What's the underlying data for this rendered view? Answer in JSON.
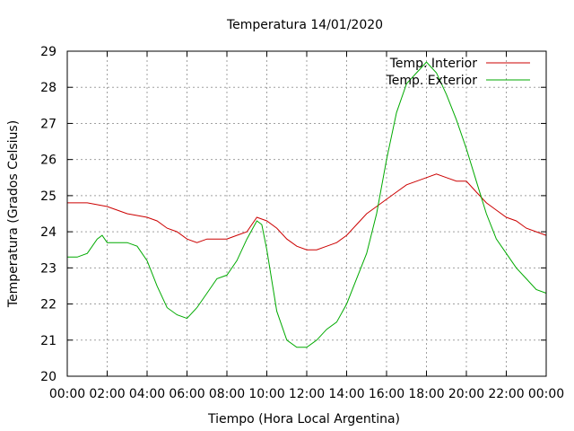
{
  "chart_data": {
    "type": "line",
    "title": "Temperatura 14/01/2020",
    "xlabel": "Tiempo (Hora Local Argentina)",
    "ylabel": "Temperatura (Grados Celsius)",
    "x_unit": "hours",
    "xlim": [
      0,
      24
    ],
    "ylim": [
      20,
      29
    ],
    "grid": true,
    "legend_position": "top-right",
    "x_ticks": [
      "00:00",
      "02:00",
      "04:00",
      "06:00",
      "08:00",
      "10:00",
      "12:00",
      "14:00",
      "16:00",
      "18:00",
      "20:00",
      "22:00",
      "00:00"
    ],
    "y_ticks": [
      "20",
      "21",
      "22",
      "23",
      "24",
      "25",
      "26",
      "27",
      "28",
      "29"
    ],
    "series": [
      {
        "name": "Temp. Interior",
        "color": "#cc0000",
        "points": [
          [
            0,
            24.8
          ],
          [
            1,
            24.8
          ],
          [
            2,
            24.7
          ],
          [
            3,
            24.5
          ],
          [
            4,
            24.4
          ],
          [
            4.5,
            24.3
          ],
          [
            5,
            24.1
          ],
          [
            5.5,
            24.0
          ],
          [
            6,
            23.8
          ],
          [
            6.5,
            23.7
          ],
          [
            7,
            23.8
          ],
          [
            7.5,
            23.8
          ],
          [
            8,
            23.8
          ],
          [
            8.5,
            23.9
          ],
          [
            9,
            24.0
          ],
          [
            9.5,
            24.4
          ],
          [
            10,
            24.3
          ],
          [
            10.5,
            24.1
          ],
          [
            11,
            23.8
          ],
          [
            11.5,
            23.6
          ],
          [
            12,
            23.5
          ],
          [
            12.5,
            23.5
          ],
          [
            13,
            23.6
          ],
          [
            13.5,
            23.7
          ],
          [
            14,
            23.9
          ],
          [
            14.5,
            24.2
          ],
          [
            15,
            24.5
          ],
          [
            15.5,
            24.7
          ],
          [
            16,
            24.9
          ],
          [
            16.5,
            25.1
          ],
          [
            17,
            25.3
          ],
          [
            17.5,
            25.4
          ],
          [
            18,
            25.5
          ],
          [
            18.5,
            25.6
          ],
          [
            19,
            25.5
          ],
          [
            19.5,
            25.4
          ],
          [
            20,
            25.4
          ],
          [
            20.5,
            25.1
          ],
          [
            21,
            24.8
          ],
          [
            21.5,
            24.6
          ],
          [
            22,
            24.4
          ],
          [
            22.5,
            24.3
          ],
          [
            23,
            24.1
          ],
          [
            23.5,
            24.0
          ],
          [
            24,
            23.9
          ]
        ]
      },
      {
        "name": "Temp. Exterior",
        "color": "#00aa00",
        "points": [
          [
            0,
            23.3
          ],
          [
            0.5,
            23.3
          ],
          [
            1,
            23.4
          ],
          [
            1.5,
            23.8
          ],
          [
            1.75,
            23.9
          ],
          [
            2,
            23.7
          ],
          [
            2.5,
            23.7
          ],
          [
            3,
            23.7
          ],
          [
            3.5,
            23.6
          ],
          [
            4,
            23.2
          ],
          [
            4.5,
            22.5
          ],
          [
            5,
            21.9
          ],
          [
            5.5,
            21.7
          ],
          [
            6,
            21.6
          ],
          [
            6.5,
            21.9
          ],
          [
            7,
            22.3
          ],
          [
            7.5,
            22.7
          ],
          [
            8,
            22.8
          ],
          [
            8.5,
            23.2
          ],
          [
            9,
            23.8
          ],
          [
            9.5,
            24.3
          ],
          [
            9.75,
            24.2
          ],
          [
            10,
            23.5
          ],
          [
            10.5,
            21.8
          ],
          [
            11,
            21.0
          ],
          [
            11.5,
            20.8
          ],
          [
            12,
            20.8
          ],
          [
            12.5,
            21.0
          ],
          [
            13,
            21.3
          ],
          [
            13.5,
            21.5
          ],
          [
            14,
            22.0
          ],
          [
            14.5,
            22.7
          ],
          [
            15,
            23.4
          ],
          [
            15.5,
            24.5
          ],
          [
            16,
            26.0
          ],
          [
            16.5,
            27.3
          ],
          [
            17,
            28.1
          ],
          [
            17.5,
            28.4
          ],
          [
            18,
            28.7
          ],
          [
            18.5,
            28.4
          ],
          [
            19,
            27.8
          ],
          [
            19.5,
            27.1
          ],
          [
            20,
            26.3
          ],
          [
            20.5,
            25.4
          ],
          [
            21,
            24.5
          ],
          [
            21.5,
            23.8
          ],
          [
            22,
            23.4
          ],
          [
            22.5,
            23.0
          ],
          [
            23,
            22.7
          ],
          [
            23.5,
            22.4
          ],
          [
            24,
            22.3
          ]
        ]
      }
    ]
  }
}
